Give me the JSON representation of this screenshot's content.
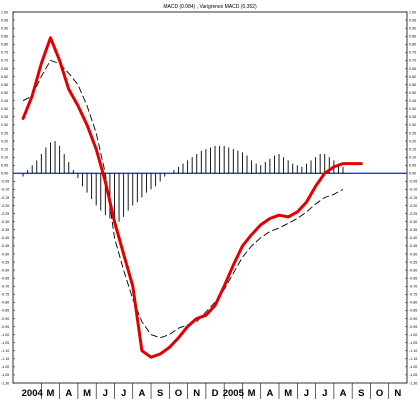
{
  "chart_data": {
    "type": "line",
    "title": "MACD (0.084) , Varigrenes MACD (0.352)",
    "xlabel": "",
    "ylabel": "",
    "ylim": [
      -1.3,
      1.0
    ],
    "ytick_step": 0.05,
    "grid": false,
    "x_ticks": [
      "2004",
      "M",
      "A",
      "M",
      "J",
      "J",
      "A",
      "S",
      "O",
      "N",
      "D",
      "2005",
      "M",
      "A",
      "M",
      "J",
      "J",
      "A",
      "S",
      "O",
      "N"
    ],
    "x_tick_index": [
      0,
      1,
      2,
      3,
      4,
      5,
      6,
      7,
      8,
      9,
      10,
      11,
      12,
      13,
      14,
      15,
      16,
      17,
      18,
      19,
      20
    ],
    "zero_line": 0,
    "series": [
      {
        "kind": "line",
        "color": "#e00000",
        "x": [
          -0.5,
          0,
          0.5,
          1,
          1.5,
          2,
          2.5,
          3,
          3.5,
          4,
          4.5,
          5,
          5.5,
          6,
          6.5,
          7,
          7.5,
          8,
          8.5,
          9,
          9.5,
          10,
          10.5,
          11,
          11.5,
          12,
          12.5,
          13,
          13.5,
          14,
          14.5,
          15,
          15.5,
          16,
          16.5,
          17,
          17.5,
          18
        ],
        "values": [
          0.34,
          0.48,
          0.68,
          0.84,
          0.7,
          0.52,
          0.42,
          0.3,
          0.15,
          -0.05,
          -0.3,
          -0.5,
          -0.7,
          -1.1,
          -1.14,
          -1.12,
          -1.08,
          -1.02,
          -0.95,
          -0.9,
          -0.88,
          -0.82,
          -0.7,
          -0.57,
          -0.45,
          -0.38,
          -0.32,
          -0.28,
          -0.26,
          -0.27,
          -0.24,
          -0.18,
          -0.08,
          0.0,
          0.04,
          0.06,
          0.06,
          0.06
        ]
      },
      {
        "kind": "line",
        "color": "#000000",
        "dashed": true,
        "x": [
          -0.5,
          0,
          0.5,
          1,
          1.5,
          2,
          2.5,
          3,
          3.5,
          4,
          4.5,
          5,
          5.5,
          6,
          6.5,
          7,
          7.5,
          8,
          8.5,
          9,
          9.5,
          10,
          10.5,
          11,
          11.5,
          12,
          12.5,
          13,
          13.5,
          14,
          14.5,
          15,
          15.5,
          16,
          16.5,
          17
        ],
        "values": [
          0.45,
          0.48,
          0.6,
          0.7,
          0.68,
          0.62,
          0.55,
          0.42,
          0.25,
          0.0,
          -0.4,
          -0.6,
          -0.78,
          -0.92,
          -1.0,
          -1.02,
          -1.0,
          -0.96,
          -0.94,
          -0.92,
          -0.86,
          -0.8,
          -0.72,
          -0.62,
          -0.52,
          -0.45,
          -0.4,
          -0.36,
          -0.34,
          -0.31,
          -0.28,
          -0.24,
          -0.19,
          -0.15,
          -0.13,
          -0.1
        ]
      },
      {
        "kind": "histogram",
        "color": "#000000",
        "x": [
          -0.5,
          -0.25,
          0,
          0.25,
          0.5,
          0.75,
          1,
          1.25,
          1.5,
          1.75,
          2,
          2.25,
          2.5,
          2.75,
          3,
          3.25,
          3.5,
          3.75,
          4,
          4.25,
          4.5,
          4.75,
          5,
          5.25,
          5.5,
          5.75,
          6,
          6.25,
          6.5,
          6.75,
          7,
          7.25,
          7.5,
          7.75,
          8,
          8.25,
          8.5,
          8.75,
          9,
          9.25,
          9.5,
          9.75,
          10,
          10.25,
          10.5,
          10.75,
          11,
          11.25,
          11.5,
          11.75,
          12,
          12.25,
          12.5,
          12.75,
          13,
          13.25,
          13.5,
          13.75,
          14,
          14.25,
          14.5,
          14.75,
          15,
          15.25,
          15.5,
          15.75,
          16,
          16.25,
          16.5,
          16.75,
          17
        ],
        "values": [
          -0.02,
          0.02,
          0.05,
          0.08,
          0.12,
          0.16,
          0.19,
          0.2,
          0.17,
          0.12,
          0.07,
          0.02,
          -0.03,
          -0.08,
          -0.12,
          -0.16,
          -0.2,
          -0.23,
          -0.26,
          -0.28,
          -0.3,
          -0.3,
          -0.27,
          -0.23,
          -0.2,
          -0.18,
          -0.15,
          -0.12,
          -0.1,
          -0.08,
          -0.05,
          -0.02,
          0.0,
          0.02,
          0.04,
          0.06,
          0.08,
          0.1,
          0.12,
          0.14,
          0.15,
          0.16,
          0.17,
          0.17,
          0.17,
          0.16,
          0.15,
          0.14,
          0.13,
          0.11,
          0.08,
          0.06,
          0.05,
          0.07,
          0.09,
          0.11,
          0.12,
          0.1,
          0.08,
          0.06,
          0.05,
          0.04,
          0.06,
          0.08,
          0.1,
          0.12,
          0.12,
          0.1,
          0.08,
          0.06,
          0.04
        ]
      }
    ]
  },
  "colors": {
    "zero_line": "#2838c8",
    "axis": "#000000"
  }
}
